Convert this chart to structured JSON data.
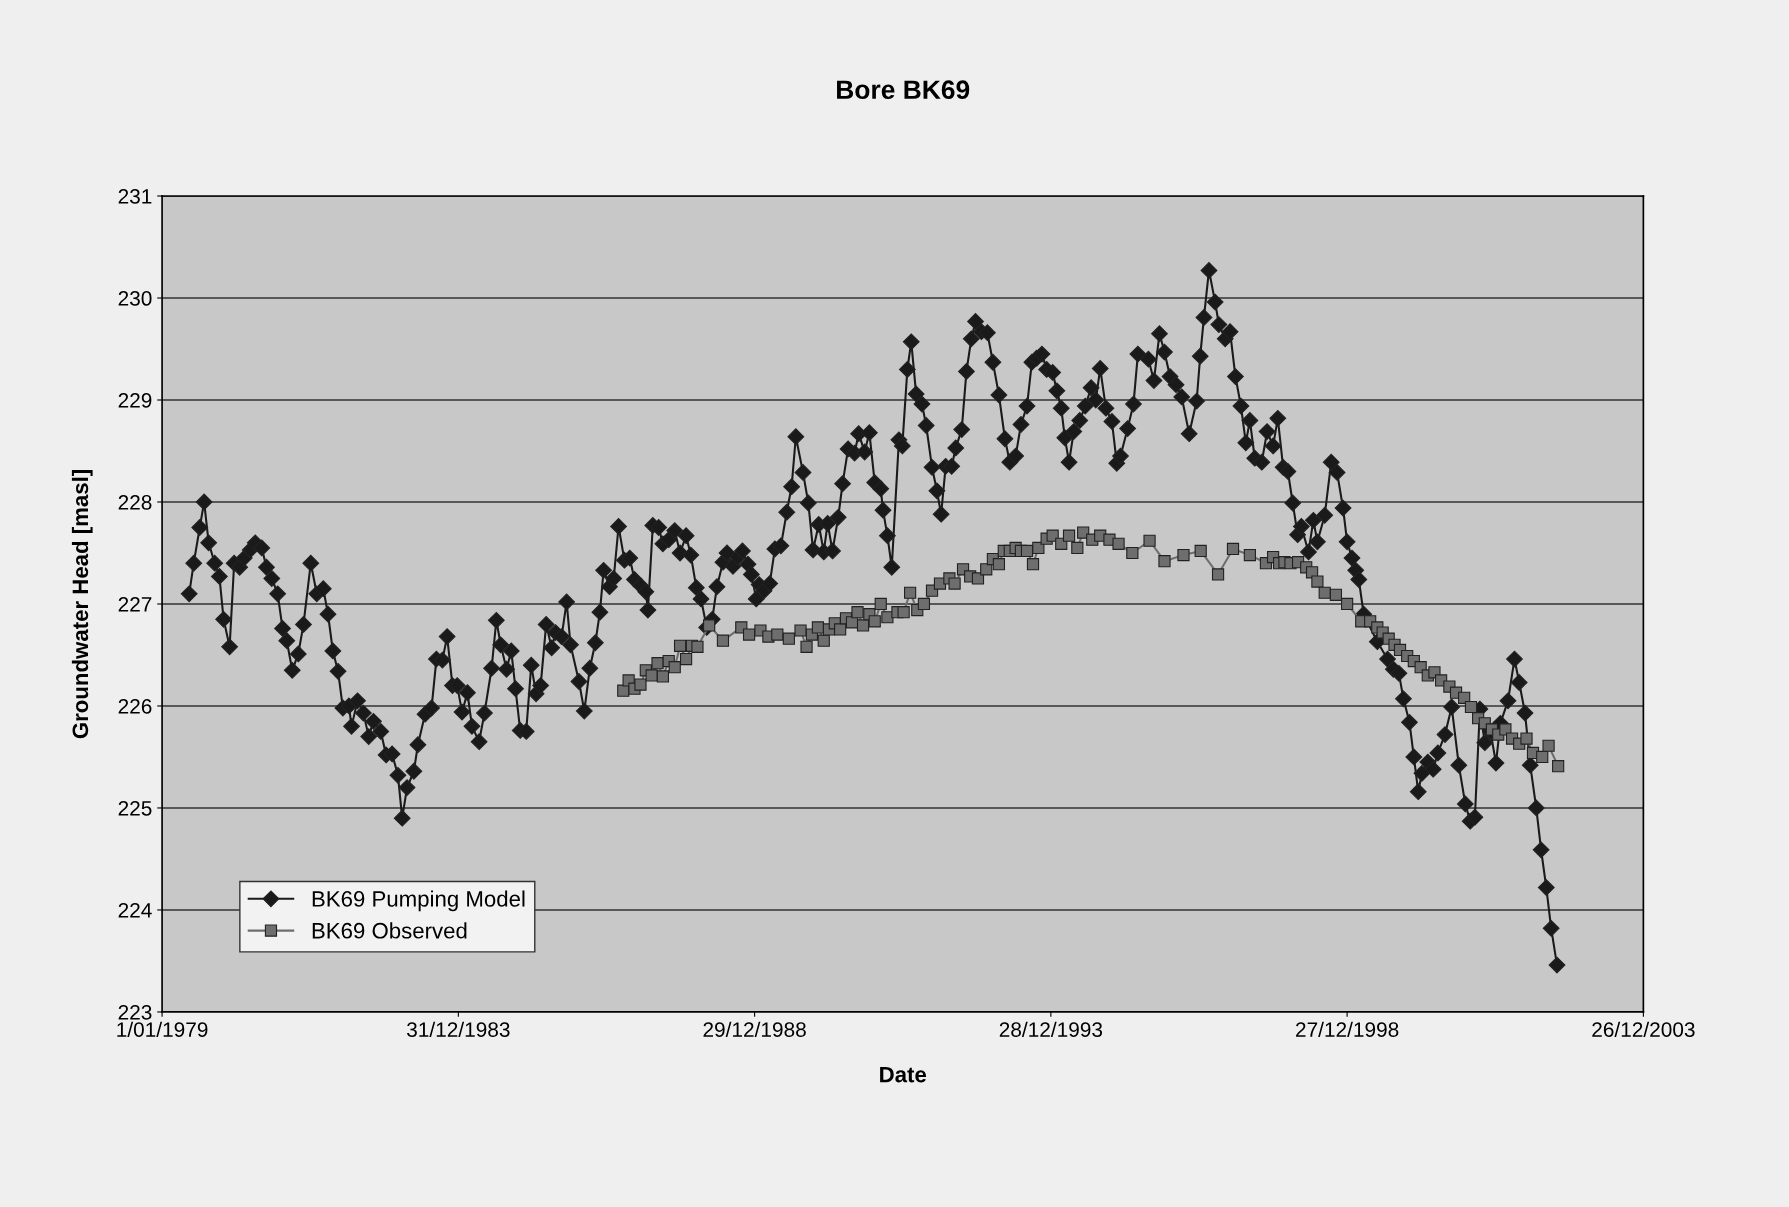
{
  "chart_data": {
    "type": "line",
    "title": "Bore BK69",
    "xlabel": "Date",
    "ylabel": "Groundwater Head [masl]",
    "xlim": [
      "1979-01-01",
      "2003-12-26"
    ],
    "xticks": [
      {
        "value": "1979-01-01",
        "label": "1/01/1979"
      },
      {
        "value": "1983-12-31",
        "label": "31/12/1983"
      },
      {
        "value": "1988-12-29",
        "label": "29/12/1988"
      },
      {
        "value": "1993-12-28",
        "label": "28/12/1993"
      },
      {
        "value": "1998-12-27",
        "label": "27/12/1998"
      },
      {
        "value": "2003-12-26",
        "label": "26/12/2003"
      }
    ],
    "ylim": [
      223,
      231
    ],
    "yticks": [
      223,
      224,
      225,
      226,
      227,
      228,
      229,
      230,
      231
    ],
    "grid": "y",
    "legend": "bottom left",
    "series": [
      {
        "name": "BK69 Pumping Model",
        "color": "#1a1a1a",
        "marker": "diamond",
        "line_style": "solid",
        "x": [
          "1979-06-17",
          "1979-07-15",
          "1979-08-21",
          "1979-09-17",
          "1979-10-15",
          "1979-11-21",
          "1979-12-20",
          "1980-01-15",
          "1980-02-21",
          "1980-03-20",
          "1980-04-23",
          "1980-05-21",
          "1980-06-27",
          "1980-07-28",
          "1980-09-06",
          "1980-10-05",
          "1980-11-07",
          "1980-12-13",
          "1981-01-12",
          "1981-02-07",
          "1981-03-13",
          "1981-04-19",
          "1981-05-21",
          "1981-07-05",
          "1981-08-11",
          "1981-09-20",
          "1981-10-19",
          "1981-11-18",
          "1981-12-20",
          "1982-01-19",
          "1982-02-25",
          "1982-03-13",
          "1982-04-19",
          "1982-05-25",
          "1982-06-27",
          "1982-07-26",
          "1982-09-09",
          "1982-10-12",
          "1982-11-18",
          "1982-12-24",
          "1983-01-19",
          "1983-02-18",
          "1983-04-01",
          "1983-04-26",
          "1983-06-09",
          "1983-07-19",
          "1983-08-18",
          "1983-09-24",
          "1983-10-23",
          "1983-11-25",
          "1983-12-24",
          "1984-01-23",
          "1984-02-25",
          "1984-03-24",
          "1984-05-07",
          "1984-06-09",
          "1984-07-23",
          "1984-08-21",
          "1984-09-17",
          "1984-10-23",
          "1984-11-21",
          "1984-12-17",
          "1985-01-15",
          "1985-02-21",
          "1985-03-24",
          "1985-04-23",
          "1985-05-21",
          "1985-06-24",
          "1985-07-28",
          "1985-08-21",
          "1985-09-27",
          "1985-10-28",
          "1985-11-21",
          "1986-01-12",
          "1986-02-14",
          "1986-03-20",
          "1986-04-23",
          "1986-05-21",
          "1986-06-13",
          "1986-07-19",
          "1986-08-14",
          "1986-09-13",
          "1986-10-19",
          "1986-11-21",
          "1986-12-20",
          "1987-01-26",
          "1987-02-28",
          "1987-03-13",
          "1987-04-12",
          "1987-05-18",
          "1987-06-13",
          "1987-07-19",
          "1987-08-25",
          "1987-09-27",
          "1987-11-03",
          "1987-12-02",
          "1988-01-05",
          "1988-02-03",
          "1988-03-09",
          "1988-04-12",
          "1988-05-11",
          "1988-06-17",
          "1988-07-12",
          "1988-08-18",
          "1988-09-17",
          "1988-10-15",
          "1988-11-18",
          "1988-12-09",
          "1989-01-08",
          "1989-01-26",
          "1989-02-25",
          "1989-04-01",
          "1989-05-03",
          "1989-06-09",
          "1989-07-15",
          "1989-08-14",
          "1989-09-09",
          "1989-10-23",
          "1989-11-25",
          "1989-12-24",
          "1990-01-28",
          "1990-02-28",
          "1990-03-24",
          "1990-04-23",
          "1990-05-28",
          "1990-06-24",
          "1990-07-28",
          "1990-09-06",
          "1990-10-01",
          "1990-11-07",
          "1990-12-06",
          "1991-01-08",
          "1991-02-14",
          "1991-02-28",
          "1991-03-27",
          "1991-04-23",
          "1991-06-06",
          "1991-06-27",
          "1991-07-28",
          "1991-08-21",
          "1991-09-20",
          "1991-10-26",
          "1991-11-21",
          "1991-12-27",
          "1992-01-26",
          "1992-02-21",
          "1992-03-20",
          "1992-04-26",
          "1992-05-21",
          "1992-06-27",
          "1992-07-26",
          "1992-08-25",
          "1992-09-20",
          "1992-10-26",
          "1992-12-02",
          "1993-01-05",
          "1993-02-11",
          "1993-03-20",
          "1993-04-19",
          "1993-05-25",
          "1993-06-27",
          "1993-08-03",
          "1993-09-02",
          "1993-10-01",
          "1993-11-03",
          "1993-12-02",
          "1994-01-08",
          "1994-02-03",
          "1994-03-02",
          "1994-03-24",
          "1994-04-19",
          "1994-05-18",
          "1994-06-24",
          "1994-07-28",
          "1994-09-02",
          "1994-10-01",
          "1994-10-28",
          "1994-12-02",
          "1995-01-08",
          "1995-02-07",
          "1995-03-02",
          "1995-04-15",
          "1995-05-21",
          "1995-06-17",
          "1995-08-21",
          "1995-09-24",
          "1995-10-28",
          "1995-11-28",
          "1996-01-01",
          "1996-02-07",
          "1996-03-13",
          "1996-04-28",
          "1996-06-13",
          "1996-07-05",
          "1996-07-28",
          "1996-08-28",
          "1996-10-05",
          "1996-10-28",
          "1996-12-06",
          "1997-01-05",
          "1997-02-07",
          "1997-03-13",
          "1997-04-12",
          "1997-05-07",
          "1997-06-06",
          "1997-07-19",
          "1997-08-21",
          "1997-09-27",
          "1997-10-26",
          "1997-11-28",
          "1997-12-27",
          "1998-01-26",
          "1998-02-25",
          "1998-03-20",
          "1998-05-03",
          "1998-06-02",
          "1998-06-27",
          "1998-08-11",
          "1998-09-20",
          "1998-10-26",
          "1998-12-02",
          "1998-12-27",
          "1999-01-26",
          "1999-02-18",
          "1999-03-09",
          "1999-04-08",
          "1999-07-01",
          "1999-09-02",
          "1999-10-08",
          "1999-11-11",
          "1999-12-09",
          "2000-01-15",
          "2000-02-11",
          "2000-03-09",
          "2000-04-01",
          "2000-05-07",
          "2000-06-09",
          "2000-07-08",
          "2000-08-21",
          "2000-10-01",
          "2000-11-14",
          "2000-12-24",
          "2001-01-23",
          "2001-02-21",
          "2001-03-24",
          "2001-04-23",
          "2001-05-28",
          "2001-07-01",
          "2001-07-28",
          "2001-09-13",
          "2001-10-23",
          "2001-11-21",
          "2001-12-27",
          "2002-01-28",
          "2002-03-06",
          "2002-04-05",
          "2002-05-07",
          "2002-06-06",
          "2002-07-12"
        ],
        "values": [
          227.1,
          227.4,
          227.75,
          228.0,
          227.6,
          227.4,
          227.27,
          226.85,
          226.58,
          227.4,
          227.36,
          227.45,
          227.53,
          227.6,
          227.55,
          227.36,
          227.25,
          227.1,
          226.76,
          226.64,
          226.35,
          226.51,
          226.8,
          227.4,
          227.1,
          227.15,
          226.9,
          226.54,
          226.34,
          225.98,
          226.0,
          225.8,
          226.05,
          225.93,
          225.7,
          225.85,
          225.75,
          225.52,
          225.53,
          225.32,
          224.9,
          225.2,
          225.36,
          225.62,
          225.92,
          225.98,
          226.46,
          226.45,
          226.68,
          226.2,
          226.2,
          225.94,
          226.13,
          225.8,
          225.65,
          225.93,
          226.37,
          226.84,
          226.6,
          226.36,
          226.54,
          226.17,
          225.76,
          225.75,
          226.4,
          226.12,
          226.2,
          226.8,
          226.57,
          226.72,
          226.68,
          227.02,
          226.6,
          226.24,
          225.95,
          226.37,
          226.62,
          226.92,
          227.33,
          227.17,
          227.25,
          227.76,
          227.43,
          227.45,
          227.24,
          227.18,
          227.12,
          226.94,
          227.77,
          227.75,
          227.59,
          227.63,
          227.72,
          227.5,
          227.67,
          227.48,
          227.16,
          227.05,
          226.77,
          226.85,
          227.17,
          227.41,
          227.5,
          227.37,
          227.46,
          227.52,
          227.39,
          227.29,
          227.05,
          227.19,
          227.13,
          227.2,
          227.54,
          227.57,
          227.9,
          228.15,
          228.64,
          228.29,
          227.99,
          227.53,
          227.78,
          227.51,
          227.79,
          227.52,
          227.85,
          228.18,
          228.52,
          228.48,
          228.67,
          228.49,
          228.68,
          228.19,
          228.13,
          227.92,
          227.67,
          227.36,
          228.61,
          228.55,
          229.3,
          229.57,
          229.06,
          228.96,
          228.75,
          228.34,
          228.11,
          227.88,
          228.35,
          228.35,
          228.53,
          228.71,
          229.28,
          229.6,
          229.77,
          229.67,
          229.66,
          229.37,
          229.05,
          228.62,
          228.39,
          228.45,
          228.76,
          228.94,
          229.37,
          229.41,
          229.45,
          229.3,
          229.27,
          229.09,
          228.92,
          228.63,
          228.39,
          228.69,
          228.8,
          228.94,
          229.12,
          229.0,
          229.31,
          228.92,
          228.79,
          228.38,
          228.45,
          228.72,
          228.96,
          229.45,
          229.4,
          229.19,
          229.65,
          229.47,
          229.23,
          229.15,
          229.03,
          228.67,
          228.99,
          229.43,
          229.81,
          230.27,
          229.96,
          229.74,
          229.6,
          229.67,
          229.23,
          228.94,
          228.58,
          228.8,
          228.43,
          228.39,
          228.69,
          228.55,
          228.82,
          228.34,
          228.3,
          227.99,
          227.68,
          227.76,
          227.51,
          227.82,
          227.61,
          227.87,
          228.39,
          228.29,
          227.94,
          227.61,
          227.45,
          227.33,
          227.24,
          226.9,
          226.63,
          226.46,
          226.36,
          226.32,
          226.07,
          225.84,
          225.5,
          225.16,
          225.34,
          225.45,
          225.38,
          225.54,
          225.72,
          225.99,
          225.42,
          225.04,
          224.87,
          224.91,
          225.97,
          225.64,
          225.75,
          225.44,
          225.83,
          226.05,
          226.46,
          226.23,
          225.93,
          225.42,
          225.0,
          224.59,
          224.22,
          223.82,
          223.46
        ]
      },
      {
        "name": "BK69 Observed",
        "color": "#6e6e6e",
        "marker": "square",
        "line_style": "solid",
        "x": [
          "1986-10-12",
          "1986-11-14",
          "1986-12-20",
          "1987-01-26",
          "1987-02-28",
          "1987-04-05",
          "1987-05-11",
          "1987-06-13",
          "1987-07-19",
          "1987-08-25",
          "1987-09-27",
          "1987-11-03",
          "1987-12-09",
          "1988-01-12",
          "1988-03-24",
          "1988-06-17",
          "1988-10-08",
          "1988-11-25",
          "1989-02-03",
          "1989-03-24",
          "1989-05-18",
          "1989-07-28",
          "1989-10-08",
          "1989-11-14",
          "1989-12-17",
          "1990-01-23",
          "1990-02-28",
          "1990-04-01",
          "1990-05-07",
          "1990-06-09",
          "1990-07-15",
          "1990-08-21",
          "1990-09-24",
          "1990-10-28",
          "1990-12-06",
          "1991-01-08",
          "1991-02-14",
          "1991-03-27",
          "1991-05-28",
          "1991-07-05",
          "1991-08-14",
          "1991-09-27",
          "1991-11-07",
          "1991-12-27",
          "1992-02-14",
          "1992-04-12",
          "1992-05-14",
          "1992-07-05",
          "1992-08-18",
          "1992-10-05",
          "1992-11-25",
          "1993-01-05",
          "1993-02-11",
          "1993-03-13",
          "1993-04-19",
          "1993-05-25",
          "1993-06-27",
          "1993-08-03",
          "1993-09-09",
          "1993-10-12",
          "1993-12-02",
          "1994-01-08",
          "1994-03-02",
          "1994-04-19",
          "1994-06-09",
          "1994-07-15",
          "1994-09-09",
          "1994-10-28",
          "1994-12-24",
          "1995-02-18",
          "1995-05-14",
          "1995-08-28",
          "1995-11-28",
          "1996-03-24",
          "1996-07-08",
          "1996-10-23",
          "1997-01-23",
          "1997-05-07",
          "1997-08-14",
          "1997-09-27",
          "1997-11-03",
          "1997-12-06",
          "1998-01-12",
          "1998-02-28",
          "1998-04-19",
          "1998-05-25",
          "1998-06-27",
          "1998-08-11",
          "1998-10-19",
          "1998-12-27",
          "1999-03-24",
          "1999-05-18",
          "1999-07-01",
          "1999-08-03",
          "1999-09-09",
          "1999-10-15",
          "1999-11-18",
          "2000-01-01",
          "2000-02-11",
          "2000-03-24",
          "2000-05-07",
          "2000-06-17",
          "2000-07-28",
          "2000-09-17",
          "2000-10-28",
          "2000-12-17",
          "2001-01-28",
          "2001-03-13",
          "2001-04-23",
          "2001-06-06",
          "2001-07-15",
          "2001-08-28",
          "2001-10-08",
          "2001-11-21",
          "2002-01-05",
          "2002-02-14",
          "2002-04-12",
          "2002-05-21",
          "2002-07-19"
        ],
        "values": [
          226.15,
          226.25,
          226.17,
          226.21,
          226.35,
          226.3,
          226.42,
          226.29,
          226.44,
          226.38,
          226.59,
          226.46,
          226.59,
          226.58,
          226.79,
          226.64,
          226.77,
          226.7,
          226.74,
          226.68,
          226.7,
          226.66,
          226.74,
          226.58,
          226.7,
          226.77,
          226.64,
          226.75,
          226.81,
          226.75,
          226.86,
          226.82,
          226.92,
          226.79,
          226.9,
          226.83,
          227.0,
          226.87,
          226.92,
          226.92,
          227.11,
          226.94,
          227.0,
          227.13,
          227.2,
          227.25,
          227.2,
          227.34,
          227.27,
          227.25,
          227.34,
          227.44,
          227.39,
          227.52,
          227.52,
          227.55,
          227.52,
          227.52,
          227.39,
          227.55,
          227.64,
          227.67,
          227.59,
          227.67,
          227.55,
          227.7,
          227.63,
          227.67,
          227.63,
          227.59,
          227.5,
          227.62,
          227.42,
          227.48,
          227.52,
          227.29,
          227.54,
          227.48,
          227.4,
          227.46,
          227.4,
          227.41,
          227.4,
          227.41,
          227.36,
          227.31,
          227.22,
          227.11,
          227.09,
          227.0,
          226.83,
          226.83,
          226.77,
          226.72,
          226.66,
          226.6,
          226.55,
          226.49,
          226.44,
          226.38,
          226.3,
          226.33,
          226.25,
          226.19,
          226.13,
          226.08,
          225.99,
          225.88,
          225.83,
          225.77,
          225.72,
          225.77,
          225.68,
          225.63,
          225.68,
          225.54,
          225.5,
          225.61,
          225.41
        ]
      }
    ]
  }
}
